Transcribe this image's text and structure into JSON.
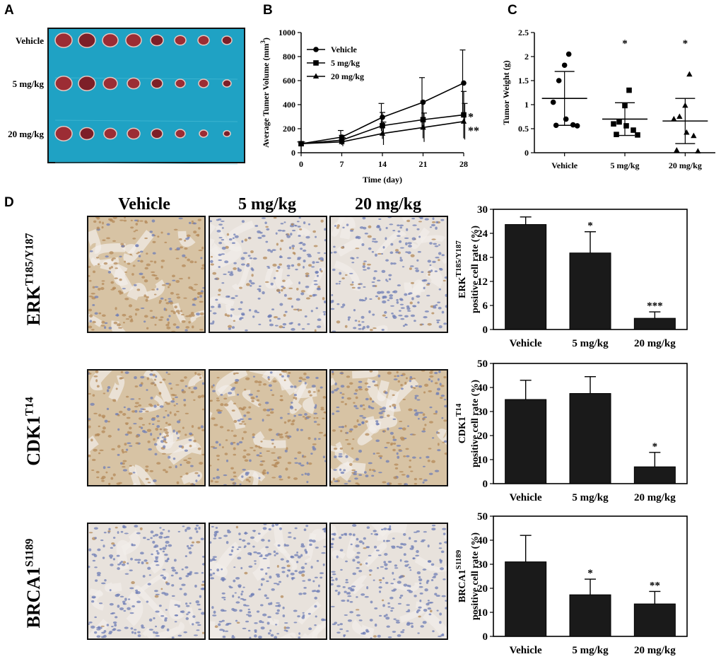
{
  "panels": {
    "a": "A",
    "b": "B",
    "c": "C",
    "d": "D"
  },
  "panel_a": {
    "row_labels": [
      "Vehicle",
      "5 mg/kg",
      "20 mg/kg"
    ],
    "background_color": "#1fa2c4",
    "tumor_color": "#9c2d34"
  },
  "panel_d": {
    "column_labels": [
      "Vehicle",
      "5 mg/kg",
      "20 mg/kg"
    ],
    "row_labels": [
      {
        "base": "ERK",
        "sup": "T185/Y187"
      },
      {
        "base": "CDK1",
        "sup": "T14"
      },
      {
        "base": "BRCA1",
        "sup": "S1189"
      }
    ],
    "stain_colors": {
      "brown": "#b48a5a",
      "blue": "#6f7db5",
      "background": "#e8e2dc"
    }
  },
  "chart_data": [
    {
      "id": "B",
      "type": "line",
      "xlabel": "Time (day)",
      "ylabel": "Average Tumer Volume (mm3)",
      "ylabel_main": "Average Tumer Volume (mm",
      "ylabel_sup": "3",
      "ylabel_close": ")",
      "x": [
        0,
        7,
        14,
        21,
        28
      ],
      "xticks": [
        0,
        7,
        14,
        21,
        28
      ],
      "yticks": [
        0,
        200,
        400,
        600,
        800,
        1000
      ],
      "xlim": [
        0,
        28
      ],
      "ylim": [
        0,
        1000
      ],
      "series": [
        {
          "name": "Vehicle",
          "marker": "circle",
          "values": [
            75,
            130,
            295,
            420,
            580
          ],
          "err": [
            15,
            55,
            115,
            205,
            275
          ]
        },
        {
          "name": "5 mg/kg",
          "marker": "square",
          "values": [
            75,
            105,
            225,
            275,
            315
          ],
          "err": [
            15,
            40,
            110,
            155,
            195
          ]
        },
        {
          "name": "20 mg/kg",
          "marker": "triangle",
          "values": [
            75,
            90,
            160,
            210,
            260
          ],
          "err": [
            15,
            35,
            95,
            120,
            150
          ]
        }
      ],
      "annotations": [
        {
          "text": "*",
          "series": "5 mg/kg"
        },
        {
          "text": "**",
          "series": "20 mg/kg"
        }
      ]
    },
    {
      "id": "C",
      "type": "scatter",
      "ylabel": "Tumor Weight (g)",
      "categories": [
        "Vehicle",
        "5 mg/kg",
        "20 mg/kg"
      ],
      "yticks": [
        0,
        0.5,
        1,
        1.5,
        2,
        2.5
      ],
      "ylim": [
        0,
        2.5
      ],
      "groups": [
        {
          "name": "Vehicle",
          "marker": "circle",
          "points": [
            2.05,
            1.82,
            1.5,
            1.05,
            0.7,
            0.58,
            0.57,
            0.56
          ],
          "mean": 1.13,
          "sd_upper": 1.69,
          "sd_lower": 0.57
        },
        {
          "name": "5 mg/kg",
          "marker": "square",
          "points": [
            1.3,
            0.98,
            0.64,
            0.6,
            0.56,
            0.47,
            0.38,
            0.37
          ],
          "mean": 0.7,
          "sd_upper": 1.04,
          "sd_lower": 0.36,
          "annotation": "*"
        },
        {
          "name": "20 mg/kg",
          "marker": "triangle",
          "points": [
            1.63,
            0.98,
            0.75,
            0.7,
            0.42,
            0.35,
            0.05,
            0.03
          ],
          "mean": 0.66,
          "sd_upper": 1.13,
          "sd_lower": 0.19,
          "annotation": "*"
        }
      ]
    },
    {
      "id": "D1",
      "type": "bar",
      "ylabel_main": "ERK",
      "ylabel_sup": "T185/Y187",
      "ylabel_line2": "positive cell rate (%)",
      "categories": [
        "Vehicle",
        "5 mg/kg",
        "20 mg/kg"
      ],
      "values": [
        26.2,
        19.1,
        2.8
      ],
      "err": [
        1.9,
        5.3,
        1.6
      ],
      "annotations": [
        "",
        "*",
        "***"
      ],
      "yticks": [
        0,
        6,
        12,
        18,
        24,
        30
      ],
      "ylim": [
        0,
        30
      ]
    },
    {
      "id": "D2",
      "type": "bar",
      "ylabel_main": "CDK1",
      "ylabel_sup": "T14",
      "ylabel_line2": "positive cell rate (%)",
      "categories": [
        "Vehicle",
        "5 mg/kg",
        "20 mg/kg"
      ],
      "values": [
        35,
        37.5,
        7
      ],
      "err": [
        8,
        7,
        6
      ],
      "annotations": [
        "",
        "",
        "*"
      ],
      "yticks": [
        0,
        10,
        20,
        30,
        40,
        50
      ],
      "ylim": [
        0,
        50
      ]
    },
    {
      "id": "D3",
      "type": "bar",
      "ylabel_main": "BRCA1",
      "ylabel_sup": "S1189",
      "ylabel_line2": "positive cell rate (%)",
      "categories": [
        "Vehicle",
        "5 mg/kg",
        "20 mg/kg"
      ],
      "values": [
        31,
        17.3,
        13.5
      ],
      "err": [
        11,
        6.5,
        5.2
      ],
      "annotations": [
        "",
        "*",
        "**"
      ],
      "yticks": [
        0,
        10,
        20,
        30,
        40,
        50
      ],
      "ylim": [
        0,
        50
      ]
    }
  ]
}
